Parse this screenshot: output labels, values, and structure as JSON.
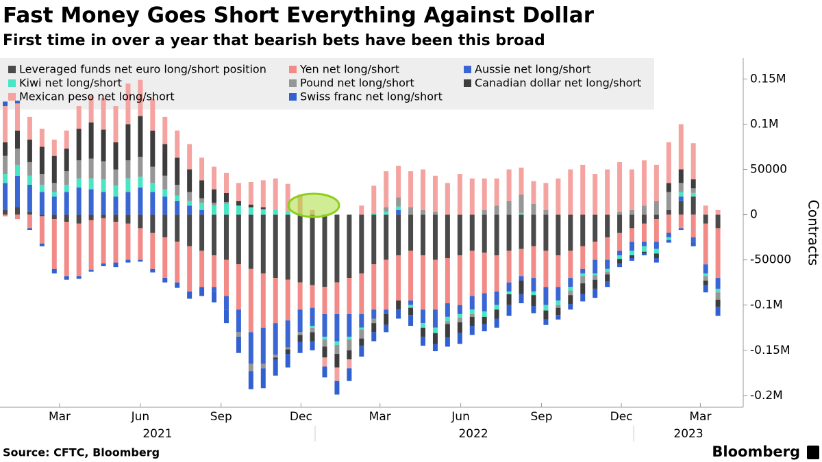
{
  "chart_data": {
    "type": "bar",
    "stacked": true,
    "title": "Fast Money Goes Short Everything Against Dollar",
    "subtitle": "First time in over a year that bearish bets have been this broad",
    "source": "Source: CFTC, Bloomberg",
    "brand": "Bloomberg",
    "y_label": "Contracts",
    "categories": [
      null,
      null,
      null,
      null,
      null,
      null,
      null,
      null,
      null,
      null,
      null,
      null,
      null,
      null,
      null,
      null,
      null,
      null,
      null,
      null,
      null,
      null,
      null,
      null,
      null,
      null,
      null,
      null,
      null,
      null,
      null,
      null,
      null,
      null,
      null,
      null,
      null,
      null,
      null,
      null,
      null,
      null,
      null,
      null,
      null,
      null,
      null,
      null,
      null,
      null,
      null,
      null,
      null,
      null,
      null,
      null,
      null,
      null,
      null
    ],
    "xlim": [
      -0.42,
      59.5
    ],
    "xticks": [
      {
        "value": 4.43,
        "label": "Mar"
      },
      {
        "value": 11.0,
        "label": "Jun"
      },
      {
        "value": 17.57,
        "label": "Sep"
      },
      {
        "value": 24.07,
        "label": "Dec"
      },
      {
        "value": 30.5,
        "label": "Mar"
      },
      {
        "value": 37.07,
        "label": "Jun"
      },
      {
        "value": 43.64,
        "label": "Sep"
      },
      {
        "value": 50.14,
        "label": "Dec"
      },
      {
        "value": 56.57,
        "label": "Mar"
      }
    ],
    "year_ticks": [
      {
        "value": 12.4,
        "label": "2021"
      },
      {
        "value": 38.1,
        "label": "2022"
      },
      {
        "value": 55.6,
        "label": "2023"
      }
    ],
    "ylim": [
      -213000,
      173000
    ],
    "yticks": [
      {
        "value": 150000,
        "label": "0.15M"
      },
      {
        "value": 100000,
        "label": "0.1M"
      },
      50000,
      0,
      -50000,
      {
        "value": -100000,
        "label": "-0.1M"
      },
      {
        "value": -150000,
        "label": "-0.15M"
      },
      {
        "value": -200000,
        "label": "-0.2M"
      }
    ],
    "grid": false,
    "series": [
      {
        "name": "Leveraged funds net euro long/short position",
        "color": "#4a4a4a",
        "values": [
          5000,
          8000,
          3000,
          -2000,
          -5000,
          -8000,
          -10000,
          -6000,
          -4000,
          -8000,
          -10000,
          -15000,
          -20000,
          -25000,
          -30000,
          -35000,
          -40000,
          -45000,
          -50000,
          -55000,
          -60000,
          -65000,
          -70000,
          -72000,
          -75000,
          -78000,
          -80000,
          -75000,
          -70000,
          -65000,
          -55000,
          -50000,
          -45000,
          -40000,
          -45000,
          -50000,
          -48000,
          -45000,
          -40000,
          -42000,
          -45000,
          -40000,
          -38000,
          -35000,
          -40000,
          -45000,
          -40000,
          -35000,
          -30000,
          -25000,
          -20000,
          -15000,
          -10000,
          -5000,
          5000,
          15000,
          20000,
          -10000,
          -15000
        ]
      },
      {
        "name": "Yen net long/short",
        "color": "#f28b87",
        "values": [
          -2000,
          -5000,
          -15000,
          -30000,
          -55000,
          -60000,
          -58000,
          -55000,
          -50000,
          -45000,
          -40000,
          -35000,
          -40000,
          -45000,
          -45000,
          -50000,
          -40000,
          -35000,
          -40000,
          -50000,
          -70000,
          -60000,
          -50000,
          -45000,
          -30000,
          -25000,
          -30000,
          -35000,
          -40000,
          -45000,
          -50000,
          -55000,
          -50000,
          -55000,
          -60000,
          -55000,
          -50000,
          -55000,
          -50000,
          -45000,
          -40000,
          -35000,
          -30000,
          -35000,
          -40000,
          -35000,
          -30000,
          -25000,
          -20000,
          -25000,
          -20000,
          -15000,
          -20000,
          -25000,
          -20000,
          -15000,
          -25000,
          -45000,
          -55000
        ]
      },
      {
        "name": "Aussie net long/short",
        "color": "#3a66d4",
        "values": [
          30000,
          35000,
          30000,
          25000,
          20000,
          25000,
          30000,
          28000,
          25000,
          20000,
          25000,
          30000,
          25000,
          20000,
          15000,
          10000,
          5000,
          -5000,
          -15000,
          -25000,
          -35000,
          -40000,
          -35000,
          -30000,
          -25000,
          -20000,
          -25000,
          -30000,
          -25000,
          -15000,
          -10000,
          -5000,
          5000,
          -5000,
          -15000,
          -20000,
          -15000,
          -10000,
          -15000,
          -20000,
          -15000,
          -10000,
          -5000,
          -15000,
          -20000,
          -15000,
          -10000,
          -5000,
          -15000,
          -10000,
          -5000,
          -10000,
          -5000,
          -8000,
          -5000,
          5000,
          -5000,
          -10000,
          -12000
        ]
      },
      {
        "name": "Kiwi net long/short",
        "color": "#48e6c4",
        "values": [
          10000,
          12000,
          10000,
          8000,
          5000,
          8000,
          10000,
          12000,
          14000,
          12000,
          15000,
          12000,
          10000,
          8000,
          6000,
          5000,
          8000,
          10000,
          12000,
          10000,
          8000,
          6000,
          5000,
          4000,
          2000,
          -2000,
          -3000,
          -4000,
          -3000,
          -2000,
          2000,
          3000,
          4000,
          -3000,
          -5000,
          -6000,
          -5000,
          -4000,
          -5000,
          -6000,
          -5000,
          -3000,
          2000,
          -4000,
          -6000,
          -5000,
          -4000,
          -3000,
          -2000,
          -3000,
          -4000,
          -5000,
          -6000,
          -5000,
          -3000,
          5000,
          4000,
          -3000,
          -4000
        ]
      },
      {
        "name": "Pound net long/short",
        "color": "#969696",
        "values": [
          20000,
          18000,
          15000,
          12000,
          10000,
          15000,
          20000,
          22000,
          20000,
          18000,
          20000,
          22000,
          18000,
          15000,
          12000,
          10000,
          5000,
          3000,
          2000,
          -5000,
          -8000,
          -5000,
          -3000,
          -2000,
          -3000,
          -5000,
          -8000,
          -10000,
          -12000,
          -10000,
          -5000,
          5000,
          10000,
          8000,
          5000,
          3000,
          -3000,
          -5000,
          -3000,
          5000,
          10000,
          15000,
          20000,
          12000,
          5000,
          -3000,
          -5000,
          -8000,
          -5000,
          -3000,
          3000,
          5000,
          10000,
          15000,
          20000,
          10000,
          5000,
          -5000,
          -8000
        ]
      },
      {
        "name": "Canadian dollar net long/short",
        "color": "#3d3d3d",
        "values": [
          15000,
          20000,
          25000,
          30000,
          30000,
          25000,
          35000,
          40000,
          35000,
          30000,
          40000,
          45000,
          40000,
          35000,
          30000,
          25000,
          20000,
          15000,
          10000,
          5000,
          3000,
          2000,
          -2000,
          -5000,
          -8000,
          -10000,
          -12000,
          -15000,
          -10000,
          -8000,
          -10000,
          -12000,
          -10000,
          -8000,
          -10000,
          -12000,
          -15000,
          -12000,
          -10000,
          -8000,
          -10000,
          -12000,
          -15000,
          -12000,
          -10000,
          -8000,
          -10000,
          -12000,
          -10000,
          -8000,
          -5000,
          -3000,
          -2000,
          -5000,
          10000,
          15000,
          10000,
          -5000,
          -8000
        ]
      },
      {
        "name": "Mexican peso net long/short",
        "color": "#f4a3a0",
        "values": [
          40000,
          30000,
          25000,
          20000,
          18000,
          20000,
          25000,
          30000,
          35000,
          40000,
          45000,
          40000,
          35000,
          30000,
          30000,
          28000,
          25000,
          25000,
          22000,
          20000,
          25000,
          30000,
          35000,
          30000,
          20000,
          5000,
          -10000,
          -15000,
          -10000,
          10000,
          30000,
          40000,
          35000,
          40000,
          45000,
          40000,
          35000,
          45000,
          40000,
          35000,
          30000,
          35000,
          30000,
          25000,
          30000,
          40000,
          50000,
          55000,
          45000,
          50000,
          55000,
          45000,
          50000,
          40000,
          45000,
          50000,
          40000,
          10000,
          5000
        ]
      },
      {
        "name": "Swiss franc net long/short",
        "color": "#3160d0",
        "values": [
          5000,
          3000,
          -2000,
          -3000,
          -5000,
          -4000,
          -3000,
          -2000,
          -3000,
          -5000,
          -3000,
          -2000,
          -4000,
          -5000,
          -6000,
          -8000,
          -10000,
          -12000,
          -15000,
          -18000,
          -20000,
          -22000,
          -18000,
          -15000,
          -12000,
          -10000,
          -12000,
          -15000,
          -14000,
          -12000,
          -10000,
          -8000,
          -10000,
          -12000,
          -10000,
          -8000,
          -10000,
          -12000,
          -10000,
          -8000,
          -10000,
          -12000,
          -10000,
          -8000,
          -6000,
          -5000,
          -6000,
          -8000,
          -10000,
          -6000,
          -4000,
          -3000,
          -2000,
          -5000,
          -3000,
          -2000,
          -5000,
          -8000,
          -10000
        ]
      }
    ]
  }
}
